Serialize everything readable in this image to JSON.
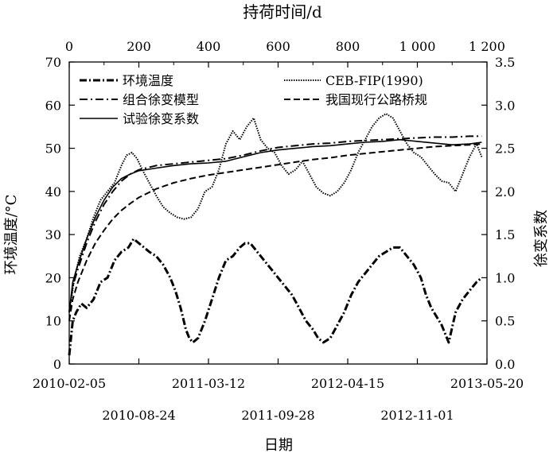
{
  "chart_data": {
    "type": "line",
    "top_axis": {
      "label": "持荷时间/d",
      "range": [
        0,
        1200
      ],
      "ticks": [
        0,
        200,
        400,
        600,
        800,
        1000,
        1200
      ],
      "tick_labels": [
        "0",
        "200",
        "400",
        "600",
        "800",
        "1 000",
        "1 200"
      ]
    },
    "bottom_axis": {
      "label": "日期",
      "row1": [
        "2010-02-05",
        "2011-03-12",
        "2012-04-15",
        "2013-05-20"
      ],
      "row1_days": [
        0,
        400,
        800,
        1200
      ],
      "row2": [
        "2010-08-24",
        "2011-09-28",
        "2012-11-01"
      ],
      "row2_days": [
        200,
        600,
        1000
      ]
    },
    "left_axis": {
      "label": "环境温度/°C",
      "range": [
        0,
        70
      ],
      "ticks": [
        0,
        10,
        20,
        30,
        40,
        50,
        60,
        70
      ],
      "tick_labels": [
        "0",
        "10",
        "20",
        "30",
        "40",
        "50",
        "60",
        "70"
      ]
    },
    "right_axis": {
      "label": "徐变系数",
      "range": [
        0,
        3.5
      ],
      "ticks": [
        0,
        0.5,
        1.0,
        1.5,
        2.0,
        2.5,
        3.0,
        3.5
      ],
      "tick_labels": [
        "0.0",
        "0.5",
        "1.0",
        "1.5",
        "2.0",
        "2.5",
        "3.0",
        "3.5"
      ]
    },
    "legend": {
      "left": [
        "环境温度",
        "组合徐变模型",
        "试验徐变系数"
      ],
      "right": [
        "CEB-FIP(1990)",
        "我国现行公路桥规"
      ]
    },
    "series": [
      {
        "name": "环境温度",
        "axis": "left",
        "style": "dashdot-thick",
        "x": [
          0,
          10,
          20,
          35,
          50,
          70,
          90,
          110,
          130,
          150,
          170,
          185,
          200,
          215,
          230,
          250,
          270,
          290,
          305,
          320,
          335,
          345,
          355,
          370,
          390,
          410,
          430,
          450,
          470,
          490,
          505,
          520,
          540,
          560,
          580,
          600,
          620,
          640,
          660,
          680,
          700,
          715,
          730,
          750,
          770,
          790,
          810,
          830,
          850,
          870,
          890,
          910,
          930,
          950,
          970,
          990,
          1010,
          1025,
          1040,
          1055,
          1070,
          1090,
          1110,
          1130,
          1150,
          1170,
          1185
        ],
        "y": [
          2,
          10,
          12,
          14,
          13,
          15,
          19,
          20,
          24,
          26,
          27,
          29,
          28,
          27,
          26,
          25,
          23,
          20,
          17,
          13,
          8,
          6,
          5,
          6,
          10,
          15,
          20,
          24,
          25,
          27,
          28,
          28,
          26,
          24,
          22,
          20,
          18,
          16,
          13,
          10,
          8,
          6,
          5,
          6,
          9,
          12,
          16,
          19,
          21,
          23,
          25,
          26,
          27,
          27,
          25,
          23,
          20,
          16,
          13,
          11,
          9,
          5,
          12,
          15,
          17,
          19,
          20
        ]
      },
      {
        "name": "组合徐变模型",
        "axis": "right",
        "style": "dashdot",
        "x": [
          0,
          10,
          25,
          50,
          75,
          100,
          125,
          150,
          175,
          200,
          250,
          300,
          350,
          400,
          450,
          500,
          550,
          600,
          650,
          700,
          750,
          800,
          850,
          900,
          950,
          1000,
          1050,
          1100,
          1150,
          1185
        ],
        "y": [
          0.6,
          0.9,
          1.1,
          1.4,
          1.65,
          1.85,
          2.0,
          2.12,
          2.2,
          2.25,
          2.3,
          2.32,
          2.34,
          2.36,
          2.38,
          2.42,
          2.47,
          2.51,
          2.53,
          2.55,
          2.56,
          2.58,
          2.59,
          2.6,
          2.61,
          2.62,
          2.63,
          2.63,
          2.64,
          2.64
        ]
      },
      {
        "name": "试验徐变系数",
        "axis": "right",
        "style": "solid",
        "x": [
          0,
          10,
          25,
          50,
          75,
          100,
          125,
          150,
          175,
          200,
          250,
          300,
          350,
          400,
          450,
          500,
          550,
          600,
          650,
          700,
          750,
          800,
          850,
          900,
          950,
          1000,
          1050,
          1100,
          1150,
          1185
        ],
        "y": [
          0.6,
          0.95,
          1.15,
          1.45,
          1.7,
          1.9,
          2.05,
          2.15,
          2.2,
          2.24,
          2.27,
          2.3,
          2.32,
          2.33,
          2.35,
          2.4,
          2.45,
          2.48,
          2.5,
          2.52,
          2.53,
          2.55,
          2.57,
          2.58,
          2.6,
          2.58,
          2.56,
          2.54,
          2.55,
          2.57
        ]
      },
      {
        "name": "CEB-FIP(1990)",
        "axis": "right",
        "style": "dotted",
        "x": [
          0,
          15,
          30,
          50,
          70,
          90,
          110,
          130,
          150,
          165,
          180,
          195,
          210,
          230,
          250,
          270,
          290,
          310,
          330,
          350,
          370,
          390,
          410,
          430,
          450,
          470,
          490,
          510,
          530,
          550,
          570,
          590,
          610,
          630,
          650,
          670,
          690,
          710,
          730,
          750,
          770,
          790,
          810,
          830,
          850,
          870,
          890,
          910,
          930,
          950,
          970,
          990,
          1010,
          1030,
          1050,
          1070,
          1090,
          1110,
          1130,
          1150,
          1170,
          1185
        ],
        "y": [
          0.6,
          1.0,
          1.25,
          1.45,
          1.7,
          1.9,
          2.0,
          2.1,
          2.3,
          2.42,
          2.45,
          2.38,
          2.25,
          2.1,
          1.95,
          1.82,
          1.75,
          1.7,
          1.68,
          1.7,
          1.8,
          2.0,
          2.05,
          2.25,
          2.55,
          2.7,
          2.6,
          2.75,
          2.85,
          2.6,
          2.5,
          2.45,
          2.3,
          2.2,
          2.25,
          2.35,
          2.2,
          2.05,
          1.98,
          1.95,
          2.0,
          2.1,
          2.25,
          2.45,
          2.6,
          2.75,
          2.85,
          2.9,
          2.85,
          2.7,
          2.55,
          2.45,
          2.4,
          2.3,
          2.2,
          2.12,
          2.1,
          2.0,
          2.2,
          2.4,
          2.55,
          2.4
        ]
      },
      {
        "name": "我国现行公路桥规",
        "axis": "right",
        "style": "dashed",
        "x": [
          0,
          10,
          25,
          50,
          75,
          100,
          125,
          150,
          175,
          200,
          250,
          300,
          350,
          400,
          450,
          500,
          550,
          600,
          650,
          700,
          750,
          800,
          850,
          900,
          950,
          1000,
          1050,
          1100,
          1150,
          1185
        ],
        "y": [
          0.5,
          0.75,
          0.95,
          1.2,
          1.4,
          1.55,
          1.68,
          1.78,
          1.86,
          1.93,
          2.03,
          2.1,
          2.15,
          2.19,
          2.22,
          2.25,
          2.28,
          2.31,
          2.34,
          2.37,
          2.39,
          2.42,
          2.44,
          2.46,
          2.48,
          2.5,
          2.52,
          2.53,
          2.54,
          2.55
        ]
      }
    ]
  }
}
